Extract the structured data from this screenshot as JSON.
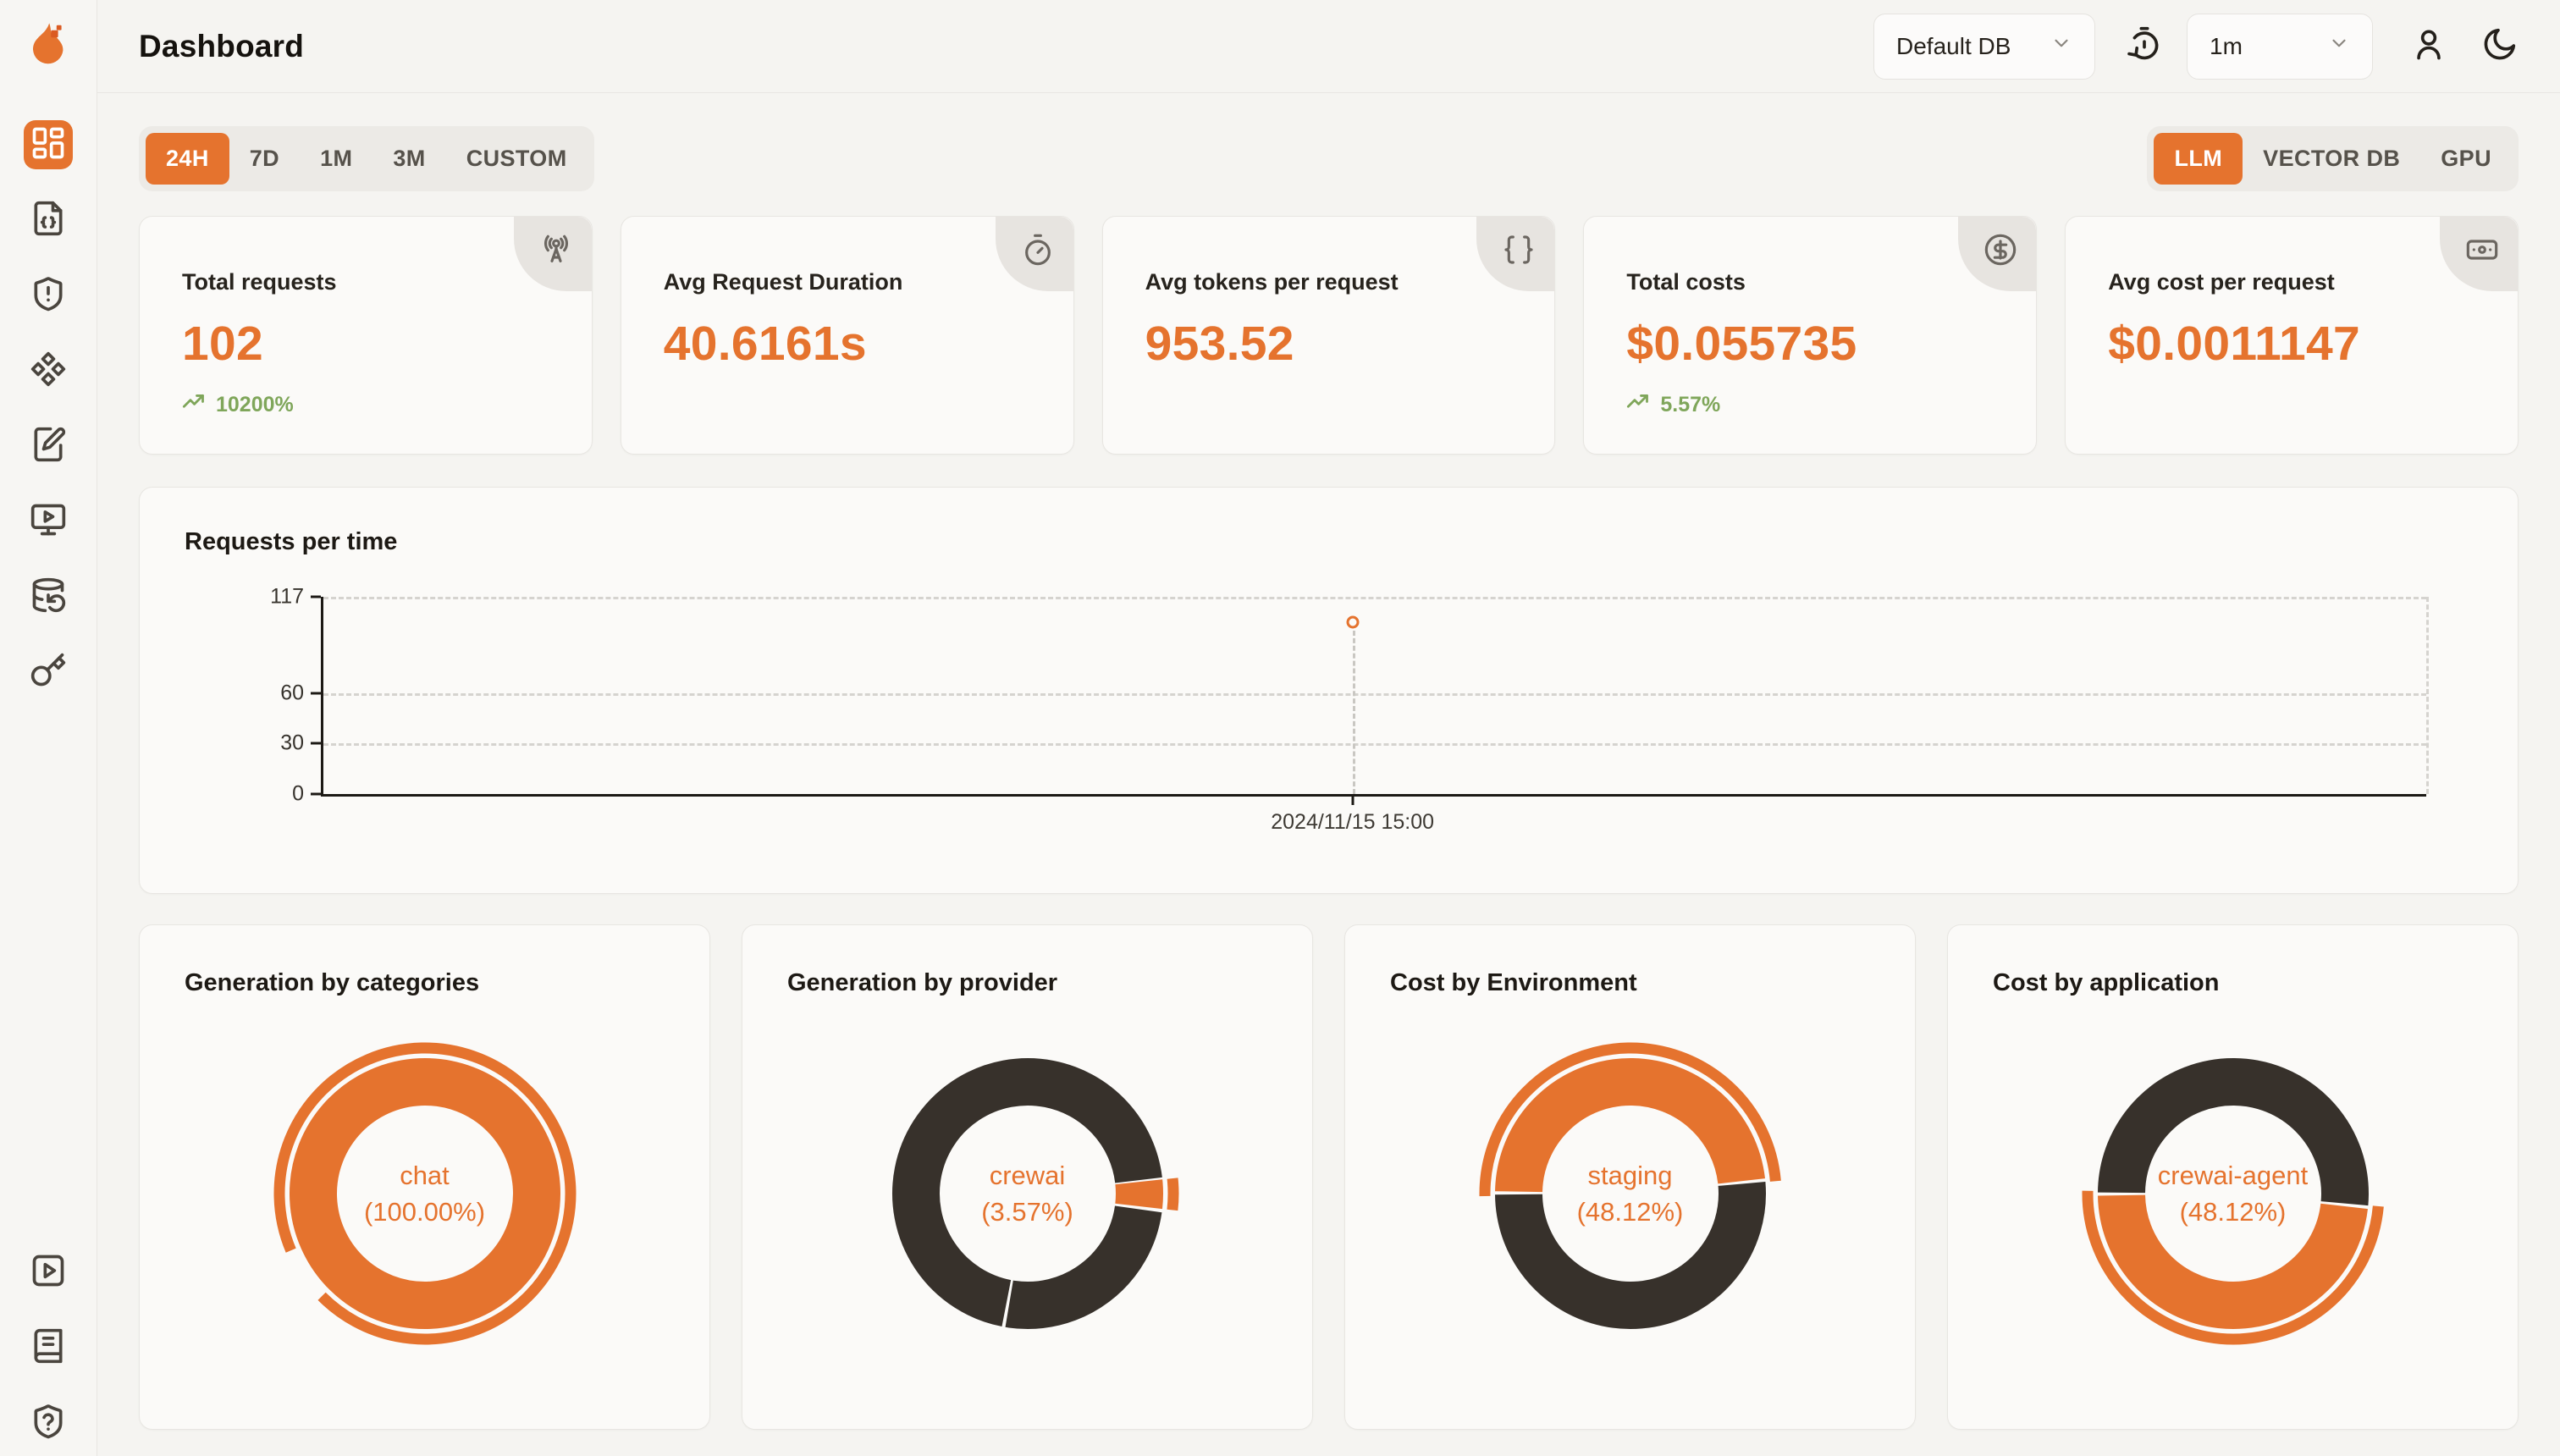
{
  "brand": {
    "accent": "#E5732E",
    "logo_icon": "flame-logo"
  },
  "header": {
    "title": "Dashboard",
    "database_select": {
      "value": "Default DB"
    },
    "refresh_select": {
      "value": "1m"
    },
    "icons": [
      "timer-reset-icon",
      "user-icon",
      "moon-icon"
    ]
  },
  "sidebar": {
    "items": [
      {
        "icon": "layout-dashboard",
        "active": true
      },
      {
        "icon": "file-code"
      },
      {
        "icon": "shield-alert"
      },
      {
        "icon": "component-diamonds"
      },
      {
        "icon": "notebook-pen"
      },
      {
        "icon": "monitor-play"
      },
      {
        "icon": "database-backup"
      },
      {
        "icon": "key"
      }
    ],
    "footer_items": [
      {
        "icon": "square-play"
      },
      {
        "icon": "book-docs"
      },
      {
        "icon": "shield-question"
      }
    ]
  },
  "toolbar": {
    "time_ranges": [
      "24H",
      "7D",
      "1M",
      "3M",
      "CUSTOM"
    ],
    "active_time_range": "24H",
    "modes": [
      "LLM",
      "VECTOR DB",
      "GPU"
    ],
    "active_mode": "LLM"
  },
  "stat_cards": [
    {
      "title": "Total requests",
      "value": "102",
      "trend": "10200%",
      "trend_color": "#7FA65A",
      "icon": "radio-tower"
    },
    {
      "title": "Avg Request Duration",
      "value": "40.6161s",
      "icon": "stopwatch"
    },
    {
      "title": "Avg tokens per request",
      "value": "953.52",
      "icon": "braces"
    },
    {
      "title": "Total costs",
      "value": "$0.055735",
      "trend": "5.57%",
      "trend_color": "#7FA65A",
      "icon": "circle-dollar"
    },
    {
      "title": "Avg cost per request",
      "value": "$0.0011147",
      "icon": "banknote"
    }
  ],
  "chart_data": [
    {
      "type": "scatter",
      "title": "Requests per time",
      "x": [
        "2024/11/15 15:00"
      ],
      "y": [
        102
      ],
      "ylim": [
        0,
        117
      ],
      "yticks": [
        0,
        30,
        60,
        117
      ],
      "grid": "dashed-horizontal-with-right-edge",
      "point_x_fraction": 0.49,
      "point_color": "#E5732E",
      "axis_color": "#1C1915"
    },
    {
      "type": "pie",
      "title": "Generation by categories",
      "center": [
        "chat",
        "(100.00%)"
      ],
      "slices": [
        {
          "label": "chat",
          "percent": 100.0,
          "color": "#E5732E",
          "start_deg": 246,
          "sweep_deg": 360
        }
      ],
      "emphasis_arc": {
        "start_deg": 247,
        "sweep_deg": 338,
        "color": "#E5732E"
      }
    },
    {
      "type": "pie",
      "title": "Generation by provider",
      "center": [
        "crewai",
        "(3.57%)"
      ],
      "slices": [
        {
          "label": "crewai",
          "percent": 3.57,
          "color": "#E5732E",
          "start_deg": 84,
          "sweep_deg": 12.5
        },
        {
          "label": "",
          "percent": 25.4,
          "color": "#37312B",
          "start_deg": 98,
          "sweep_deg": 91.5
        },
        {
          "label": "",
          "percent": 71.03,
          "color": "#37312B",
          "start_deg": 191,
          "sweep_deg": 252
        }
      ],
      "emphasis_arc": {
        "start_deg": 84,
        "sweep_deg": 12.5,
        "color": "#E5732E"
      }
    },
    {
      "type": "pie",
      "title": "Cost by Environment",
      "center": [
        "staging",
        "(48.12%)"
      ],
      "slices": [
        {
          "label": "staging",
          "percent": 48.12,
          "color": "#E5732E",
          "start_deg": 271,
          "sweep_deg": 172.5
        },
        {
          "label": "",
          "percent": 51.88,
          "color": "#37312B",
          "start_deg": 85,
          "sweep_deg": 184.5
        }
      ],
      "emphasis_arc": {
        "start_deg": 269,
        "sweep_deg": 176,
        "color": "#E5732E"
      }
    },
    {
      "type": "pie",
      "title": "Cost by application",
      "center": [
        "crewai-agent",
        "(48.12%)"
      ],
      "slices": [
        {
          "label": "crewai-agent",
          "percent": 48.12,
          "color": "#E5732E",
          "start_deg": 96.5,
          "sweep_deg": 172.5
        },
        {
          "label": "",
          "percent": 51.88,
          "color": "#37312B",
          "start_deg": 270.5,
          "sweep_deg": 184.5
        }
      ],
      "emphasis_arc": {
        "start_deg": 95,
        "sweep_deg": 176,
        "color": "#E5732E"
      }
    }
  ]
}
